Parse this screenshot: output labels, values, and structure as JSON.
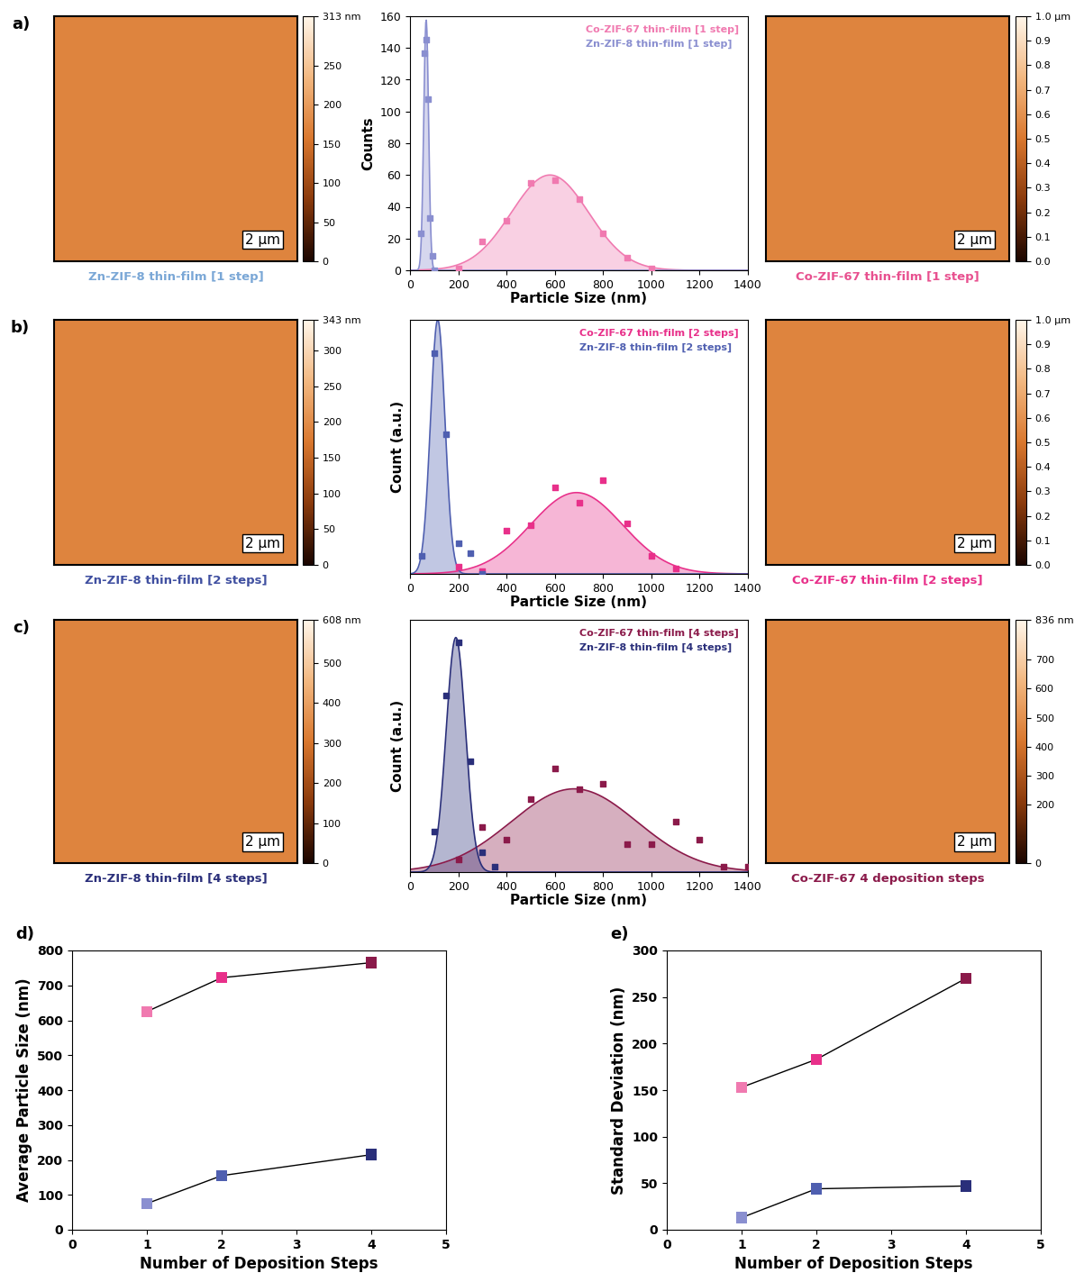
{
  "chart_data": [
    {
      "type": "image",
      "panel_label": "a)",
      "caption": "Zn-ZIF-8 thin-film [1 step]",
      "color": "#7aa7d6",
      "scale_bar": "2 µm",
      "colorbar": {
        "range": [
          0,
          313
        ],
        "ticks": [
          0,
          50,
          100,
          150,
          200,
          250,
          {
            "value": 313,
            "label": "313 nm"
          }
        ]
      }
    },
    {
      "type": "scatter",
      "ylabel": "Counts",
      "xlabel": "Particle Size (nm)",
      "legend": "upper right",
      "xlim": [
        0,
        1400
      ],
      "xticks": [
        0,
        200,
        400,
        600,
        800,
        1000,
        1200,
        1400
      ],
      "ylim": [
        0,
        160
      ],
      "yticks": [
        0,
        20,
        40,
        60,
        80,
        100,
        120,
        140,
        160
      ],
      "series": [
        {
          "name": "Co-ZIF-67 thin-film [1 step]",
          "color": "#f07ab0",
          "marker": "square",
          "x": [
            200,
            300,
            400,
            500,
            600,
            700,
            800,
            900,
            1000
          ],
          "values": [
            1,
            18,
            31,
            55,
            57,
            45,
            23,
            8,
            1
          ],
          "fit": {
            "center": 580,
            "sigma": 160,
            "amplitude": 60
          }
        },
        {
          "name": "Zn-ZIF-8 thin-film [1 step]",
          "color": "#8a8fd0",
          "marker": "square",
          "x": [
            45,
            58,
            66,
            74,
            82,
            95,
            100
          ],
          "values": [
            23,
            137,
            145,
            108,
            33,
            9,
            0
          ],
          "fit": {
            "center": 67,
            "sigma": 10,
            "amplitude": 158
          }
        }
      ]
    },
    {
      "type": "image",
      "caption": "Co-ZIF-67 thin-film [1 step]",
      "color": "#e8508f",
      "scale_bar": "2 µm",
      "colorbar": {
        "range": [
          0.0,
          1.0
        ],
        "ticks": [
          0.0,
          0.1,
          0.2,
          0.3,
          0.4,
          0.5,
          0.6,
          0.7,
          0.8,
          0.9,
          {
            "value": 1.0,
            "label": "1.0 µm"
          }
        ]
      }
    },
    {
      "type": "image",
      "panel_label": "b)",
      "caption": "Zn-ZIF-8 thin-film [2 steps]",
      "color": "#3f4fa0",
      "scale_bar": "2 µm",
      "colorbar": {
        "range": [
          0,
          343
        ],
        "ticks": [
          0,
          50,
          100,
          150,
          200,
          250,
          300,
          {
            "value": 343,
            "label": "343 nm"
          }
        ]
      }
    },
    {
      "type": "scatter",
      "ylabel": "Count (a.u.)",
      "xlabel": "Particle Size (nm)",
      "legend": "upper right",
      "tick_labels": "x",
      "xlim": [
        0,
        1400
      ],
      "xticks": [
        0,
        200,
        400,
        600,
        800,
        1000,
        1200,
        1400
      ],
      "ylim": [
        0,
        100
      ],
      "series": [
        {
          "name": "Co-ZIF-67 thin-film [2 steps]",
          "color": "#e8308a",
          "marker": "square",
          "x": [
            200,
            300,
            400,
            500,
            600,
            700,
            800,
            900,
            1000,
            1100
          ],
          "values": [
            3,
            1,
            17,
            19,
            34,
            28,
            37,
            20,
            7,
            2
          ],
          "fit": {
            "center": 690,
            "sigma": 190,
            "amplitude": 32
          }
        },
        {
          "name": "Zn-ZIF-8 thin-film [2 steps]",
          "color": "#4f5fb0",
          "marker": "square",
          "x": [
            50,
            100,
            150,
            200,
            250,
            300
          ],
          "values": [
            7,
            87,
            55,
            12,
            8,
            0
          ],
          "fit": {
            "center": 115,
            "sigma": 30,
            "amplitude": 100
          }
        }
      ]
    },
    {
      "type": "image",
      "caption": "Co-ZIF-67 thin-film [2 steps]",
      "color": "#e8308a",
      "scale_bar": "2 µm",
      "colorbar": {
        "range": [
          0.0,
          1.0
        ],
        "ticks": [
          0.0,
          0.1,
          0.2,
          0.3,
          0.4,
          0.5,
          0.6,
          0.7,
          0.8,
          0.9,
          {
            "value": 1.0,
            "label": "1.0 µm"
          }
        ]
      }
    },
    {
      "type": "image",
      "panel_label": "c)",
      "caption": "Zn-ZIF-8 thin-film [4 steps]",
      "color": "#2a2f7a",
      "scale_bar": "2 µm",
      "colorbar": {
        "range": [
          0,
          608
        ],
        "ticks": [
          0,
          100,
          200,
          300,
          400,
          500,
          {
            "value": 608,
            "label": "608 nm"
          }
        ]
      }
    },
    {
      "type": "scatter",
      "ylabel": "Count (a.u.)",
      "xlabel": "Particle Size (nm)",
      "legend": "upper right",
      "tick_labels": "x",
      "xlim": [
        0,
        1400
      ],
      "xticks": [
        0,
        200,
        400,
        600,
        800,
        1000,
        1200,
        1400
      ],
      "ylim": [
        0,
        100
      ],
      "series": [
        {
          "name": "Co-ZIF-67 thin-film [4 steps]",
          "color": "#8b1a4a",
          "marker": "square",
          "x": [
            200,
            300,
            400,
            500,
            600,
            700,
            800,
            900,
            1000,
            1100,
            1200,
            1300,
            1400
          ],
          "values": [
            5,
            18,
            13,
            29,
            41,
            33,
            35,
            11,
            11,
            20,
            13,
            2,
            2
          ],
          "fit": {
            "center": 680,
            "sigma": 260,
            "amplitude": 33
          }
        },
        {
          "name": "Zn-ZIF-8 thin-film [4 steps]",
          "color": "#2a2f7a",
          "marker": "square",
          "x": [
            100,
            150,
            200,
            250,
            300,
            350
          ],
          "values": [
            16,
            70,
            91,
            44,
            8,
            2
          ],
          "fit": {
            "center": 190,
            "sigma": 40,
            "amplitude": 93
          }
        }
      ]
    },
    {
      "type": "image",
      "caption": "Co-ZIF-67 4 deposition steps",
      "color": "#8b1a4a",
      "scale_bar": "2 µm",
      "colorbar": {
        "range": [
          0,
          836
        ],
        "ticks": [
          0,
          200,
          300,
          400,
          500,
          600,
          700,
          {
            "value": 836,
            "label": "836 nm"
          }
        ]
      }
    },
    {
      "type": "line",
      "panel_label": "d)",
      "xlabel": "Number of Deposition Steps",
      "ylabel": "Average Particle Size (nm)",
      "xlim": [
        0,
        5
      ],
      "xticks": [
        0,
        1,
        2,
        3,
        4,
        5
      ],
      "ylim": [
        0,
        800
      ],
      "yticks": [
        0,
        100,
        200,
        300,
        400,
        500,
        600,
        700,
        800
      ],
      "series": [
        {
          "x": [
            1,
            2,
            4
          ],
          "values": [
            625,
            722,
            765
          ],
          "colors": [
            "#f07ab0",
            "#e8308a",
            "#8b1a4a"
          ],
          "marker": "square"
        },
        {
          "x": [
            1,
            2,
            4
          ],
          "values": [
            75,
            155,
            215
          ],
          "colors": [
            "#8a8fd0",
            "#4f5fb0",
            "#2a2f7a"
          ],
          "marker": "square"
        }
      ]
    },
    {
      "type": "line",
      "panel_label": "e)",
      "xlabel": "Number of Deposition Steps",
      "ylabel": "Standard Deviation (nm)",
      "xlim": [
        0,
        5
      ],
      "xticks": [
        0,
        1,
        2,
        3,
        4,
        5
      ],
      "ylim": [
        0,
        300
      ],
      "yticks": [
        0,
        50,
        100,
        150,
        200,
        250,
        300
      ],
      "series": [
        {
          "x": [
            1,
            2,
            4
          ],
          "values": [
            153,
            183,
            270
          ],
          "colors": [
            "#f07ab0",
            "#e8308a",
            "#8b1a4a"
          ],
          "marker": "square"
        },
        {
          "x": [
            1,
            2,
            4
          ],
          "values": [
            13,
            44,
            47
          ],
          "colors": [
            "#8a8fd0",
            "#4f5fb0",
            "#2a2f7a"
          ],
          "marker": "square"
        }
      ]
    }
  ]
}
